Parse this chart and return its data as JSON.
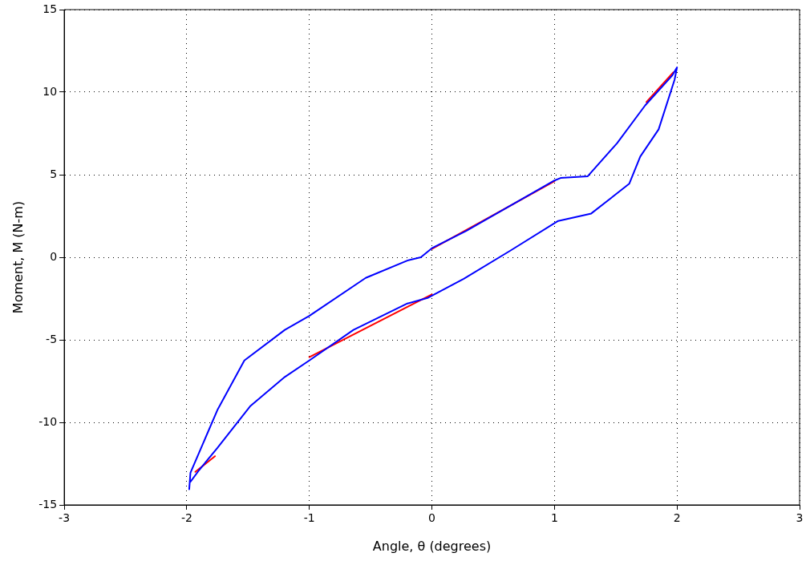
{
  "chart_data": {
    "type": "line",
    "xlabel": "Angle, θ (degrees)",
    "ylabel": "Moment, M (N-m)",
    "xlim": [
      -3,
      3
    ],
    "xticks": [
      -3,
      -2,
      -1,
      0,
      1,
      2,
      3
    ],
    "ylim": [
      -15,
      15
    ],
    "yticks": [
      -15,
      -10,
      -5,
      0,
      5,
      10,
      15
    ],
    "grid": true,
    "legend": false,
    "marker": "none",
    "line_style": "solid",
    "series": [
      {
        "color": "#0000ff",
        "x": [
          -1.98,
          -1.97,
          -1.75,
          -1.53,
          -1.2,
          -1.0,
          -0.54,
          -0.2,
          -0.09,
          0,
          0.28,
          1.0,
          1.05,
          1.27,
          1.51,
          1.74,
          1.96,
          2.0,
          1.98,
          1.85,
          1.7,
          1.61,
          1.3,
          1.03,
          0.64,
          0.26,
          -0.03,
          -0.2,
          -0.64,
          -1.0,
          -1.2,
          -1.48,
          -1.75,
          -1.9,
          -1.97
        ],
        "values": [
          -14.05,
          -13.05,
          -9.25,
          -6.25,
          -4.4,
          -3.55,
          -1.25,
          -0.2,
          0,
          0.55,
          1.6,
          4.65,
          4.8,
          4.9,
          6.9,
          9.2,
          11,
          11.5,
          10.75,
          7.75,
          6.1,
          4.45,
          2.65,
          2.2,
          0.4,
          -1.3,
          -2.45,
          -2.8,
          -4.4,
          -6.25,
          -7.25,
          -9.0,
          -11.55,
          -12.9,
          -13.6
        ]
      },
      {
        "color": "#ff0000",
        "x": [
          -1.0,
          0
        ],
        "values": [
          -6.05,
          -2.25
        ]
      },
      {
        "color": "#ff0000",
        "x": [
          0,
          1.0
        ],
        "values": [
          0.5,
          4.6
        ]
      },
      {
        "color": "#ff0000",
        "x": [
          1.75,
          1.97
        ],
        "values": [
          9.4,
          11.2
        ]
      },
      {
        "color": "#ff0000",
        "x": [
          -1.93,
          -1.77
        ],
        "values": [
          -13.0,
          -12.05
        ]
      }
    ]
  }
}
